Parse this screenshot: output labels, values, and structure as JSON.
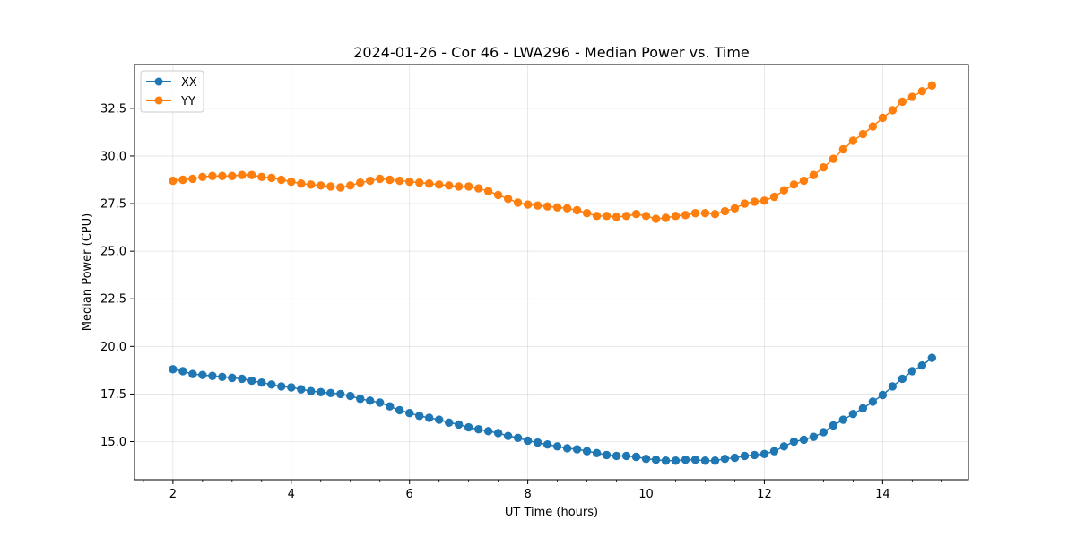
{
  "chart_data": {
    "type": "line",
    "title": "2024-01-26 - Cor 46 - LWA296 - Median Power vs. Time",
    "xlabel": "UT Time (hours)",
    "ylabel": "Median Power (CPU)",
    "xlim": [
      1.35,
      15.45
    ],
    "ylim": [
      13.0,
      34.8
    ],
    "xticks": [
      2,
      4,
      6,
      8,
      10,
      12,
      14
    ],
    "xtick_labels": [
      "2",
      "4",
      "6",
      "8",
      "10",
      "12",
      "14"
    ],
    "yticks": [
      15.0,
      17.5,
      20.0,
      22.5,
      25.0,
      27.5,
      30.0,
      32.5
    ],
    "ytick_labels": [
      "15.0",
      "17.5",
      "20.0",
      "22.5",
      "25.0",
      "27.5",
      "30.0",
      "32.5"
    ],
    "grid": true,
    "legend": "top-left",
    "x": [
      2.0,
      2.167,
      2.333,
      2.5,
      2.667,
      2.833,
      3.0,
      3.167,
      3.333,
      3.5,
      3.667,
      3.833,
      4.0,
      4.167,
      4.333,
      4.5,
      4.667,
      4.833,
      5.0,
      5.167,
      5.333,
      5.5,
      5.667,
      5.833,
      6.0,
      6.167,
      6.333,
      6.5,
      6.667,
      6.833,
      7.0,
      7.167,
      7.333,
      7.5,
      7.667,
      7.833,
      8.0,
      8.167,
      8.333,
      8.5,
      8.667,
      8.833,
      9.0,
      9.167,
      9.333,
      9.5,
      9.667,
      9.833,
      10.0,
      10.167,
      10.333,
      10.5,
      10.667,
      10.833,
      11.0,
      11.167,
      11.333,
      11.5,
      11.667,
      11.833,
      12.0,
      12.167,
      12.333,
      12.5,
      12.667,
      12.833,
      13.0,
      13.167,
      13.333,
      13.5,
      13.667,
      13.833,
      14.0,
      14.167,
      14.333,
      14.5,
      14.667,
      14.833
    ],
    "series": [
      {
        "name": "XX",
        "color": "#1f77b4",
        "values": [
          18.8,
          18.7,
          18.55,
          18.5,
          18.45,
          18.4,
          18.35,
          18.3,
          18.2,
          18.1,
          18.0,
          17.9,
          17.85,
          17.75,
          17.65,
          17.6,
          17.55,
          17.5,
          17.4,
          17.25,
          17.15,
          17.05,
          16.85,
          16.65,
          16.5,
          16.35,
          16.25,
          16.15,
          16.0,
          15.9,
          15.75,
          15.65,
          15.55,
          15.45,
          15.3,
          15.2,
          15.05,
          14.95,
          14.85,
          14.75,
          14.65,
          14.6,
          14.5,
          14.4,
          14.3,
          14.25,
          14.25,
          14.2,
          14.1,
          14.05,
          14.0,
          14.0,
          14.05,
          14.05,
          14.0,
          14.0,
          14.1,
          14.15,
          14.25,
          14.3,
          14.35,
          14.5,
          14.75,
          15.0,
          15.1,
          15.25,
          15.5,
          15.85,
          16.15,
          16.45,
          16.75,
          17.1,
          17.45,
          17.9,
          18.3,
          18.7,
          19.0,
          19.4
        ]
      },
      {
        "name": "YY",
        "color": "#ff7f0e",
        "values": [
          28.7,
          28.75,
          28.8,
          28.9,
          28.95,
          28.95,
          28.95,
          29.0,
          29.0,
          28.9,
          28.85,
          28.75,
          28.65,
          28.55,
          28.5,
          28.45,
          28.4,
          28.35,
          28.45,
          28.6,
          28.7,
          28.8,
          28.75,
          28.7,
          28.65,
          28.6,
          28.55,
          28.5,
          28.45,
          28.4,
          28.4,
          28.3,
          28.15,
          27.95,
          27.75,
          27.55,
          27.45,
          27.4,
          27.35,
          27.3,
          27.25,
          27.15,
          27.0,
          26.85,
          26.85,
          26.8,
          26.85,
          26.95,
          26.85,
          26.7,
          26.75,
          26.85,
          26.9,
          27.0,
          27.0,
          26.95,
          27.1,
          27.25,
          27.5,
          27.6,
          27.65,
          27.85,
          28.2,
          28.5,
          28.7,
          29.0,
          29.4,
          29.85,
          30.35,
          30.8,
          31.15,
          31.55,
          32.0,
          32.4,
          32.85,
          33.1,
          33.4,
          33.7
        ]
      }
    ]
  }
}
